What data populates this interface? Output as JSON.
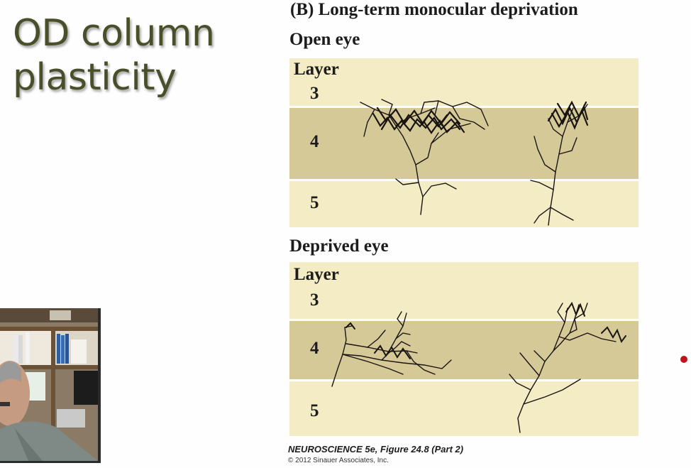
{
  "slide": {
    "title_line1": "OD column",
    "title_line2": "plasticity",
    "figure_label": "(B)  Long-term monocular deprivation",
    "panels": [
      {
        "label": "Open eye",
        "layer_header": "Layer",
        "layers": [
          "3",
          "4",
          "5"
        ]
      },
      {
        "label": "Deprived eye",
        "layer_header": "Layer",
        "layers": [
          "3",
          "4",
          "5"
        ]
      }
    ],
    "caption": "NEUROSCIENCE 5e, Figure 24.8 (Part 2)",
    "copyright": "© 2012 Sinauer Associates, Inc."
  },
  "colors": {
    "title": "#4a4f2a",
    "layer_light": "#f3ecc4",
    "layer_dark": "#d5c998",
    "pointer": "#c0141d"
  },
  "webcam": {
    "icon": "presenter-video-feed"
  }
}
